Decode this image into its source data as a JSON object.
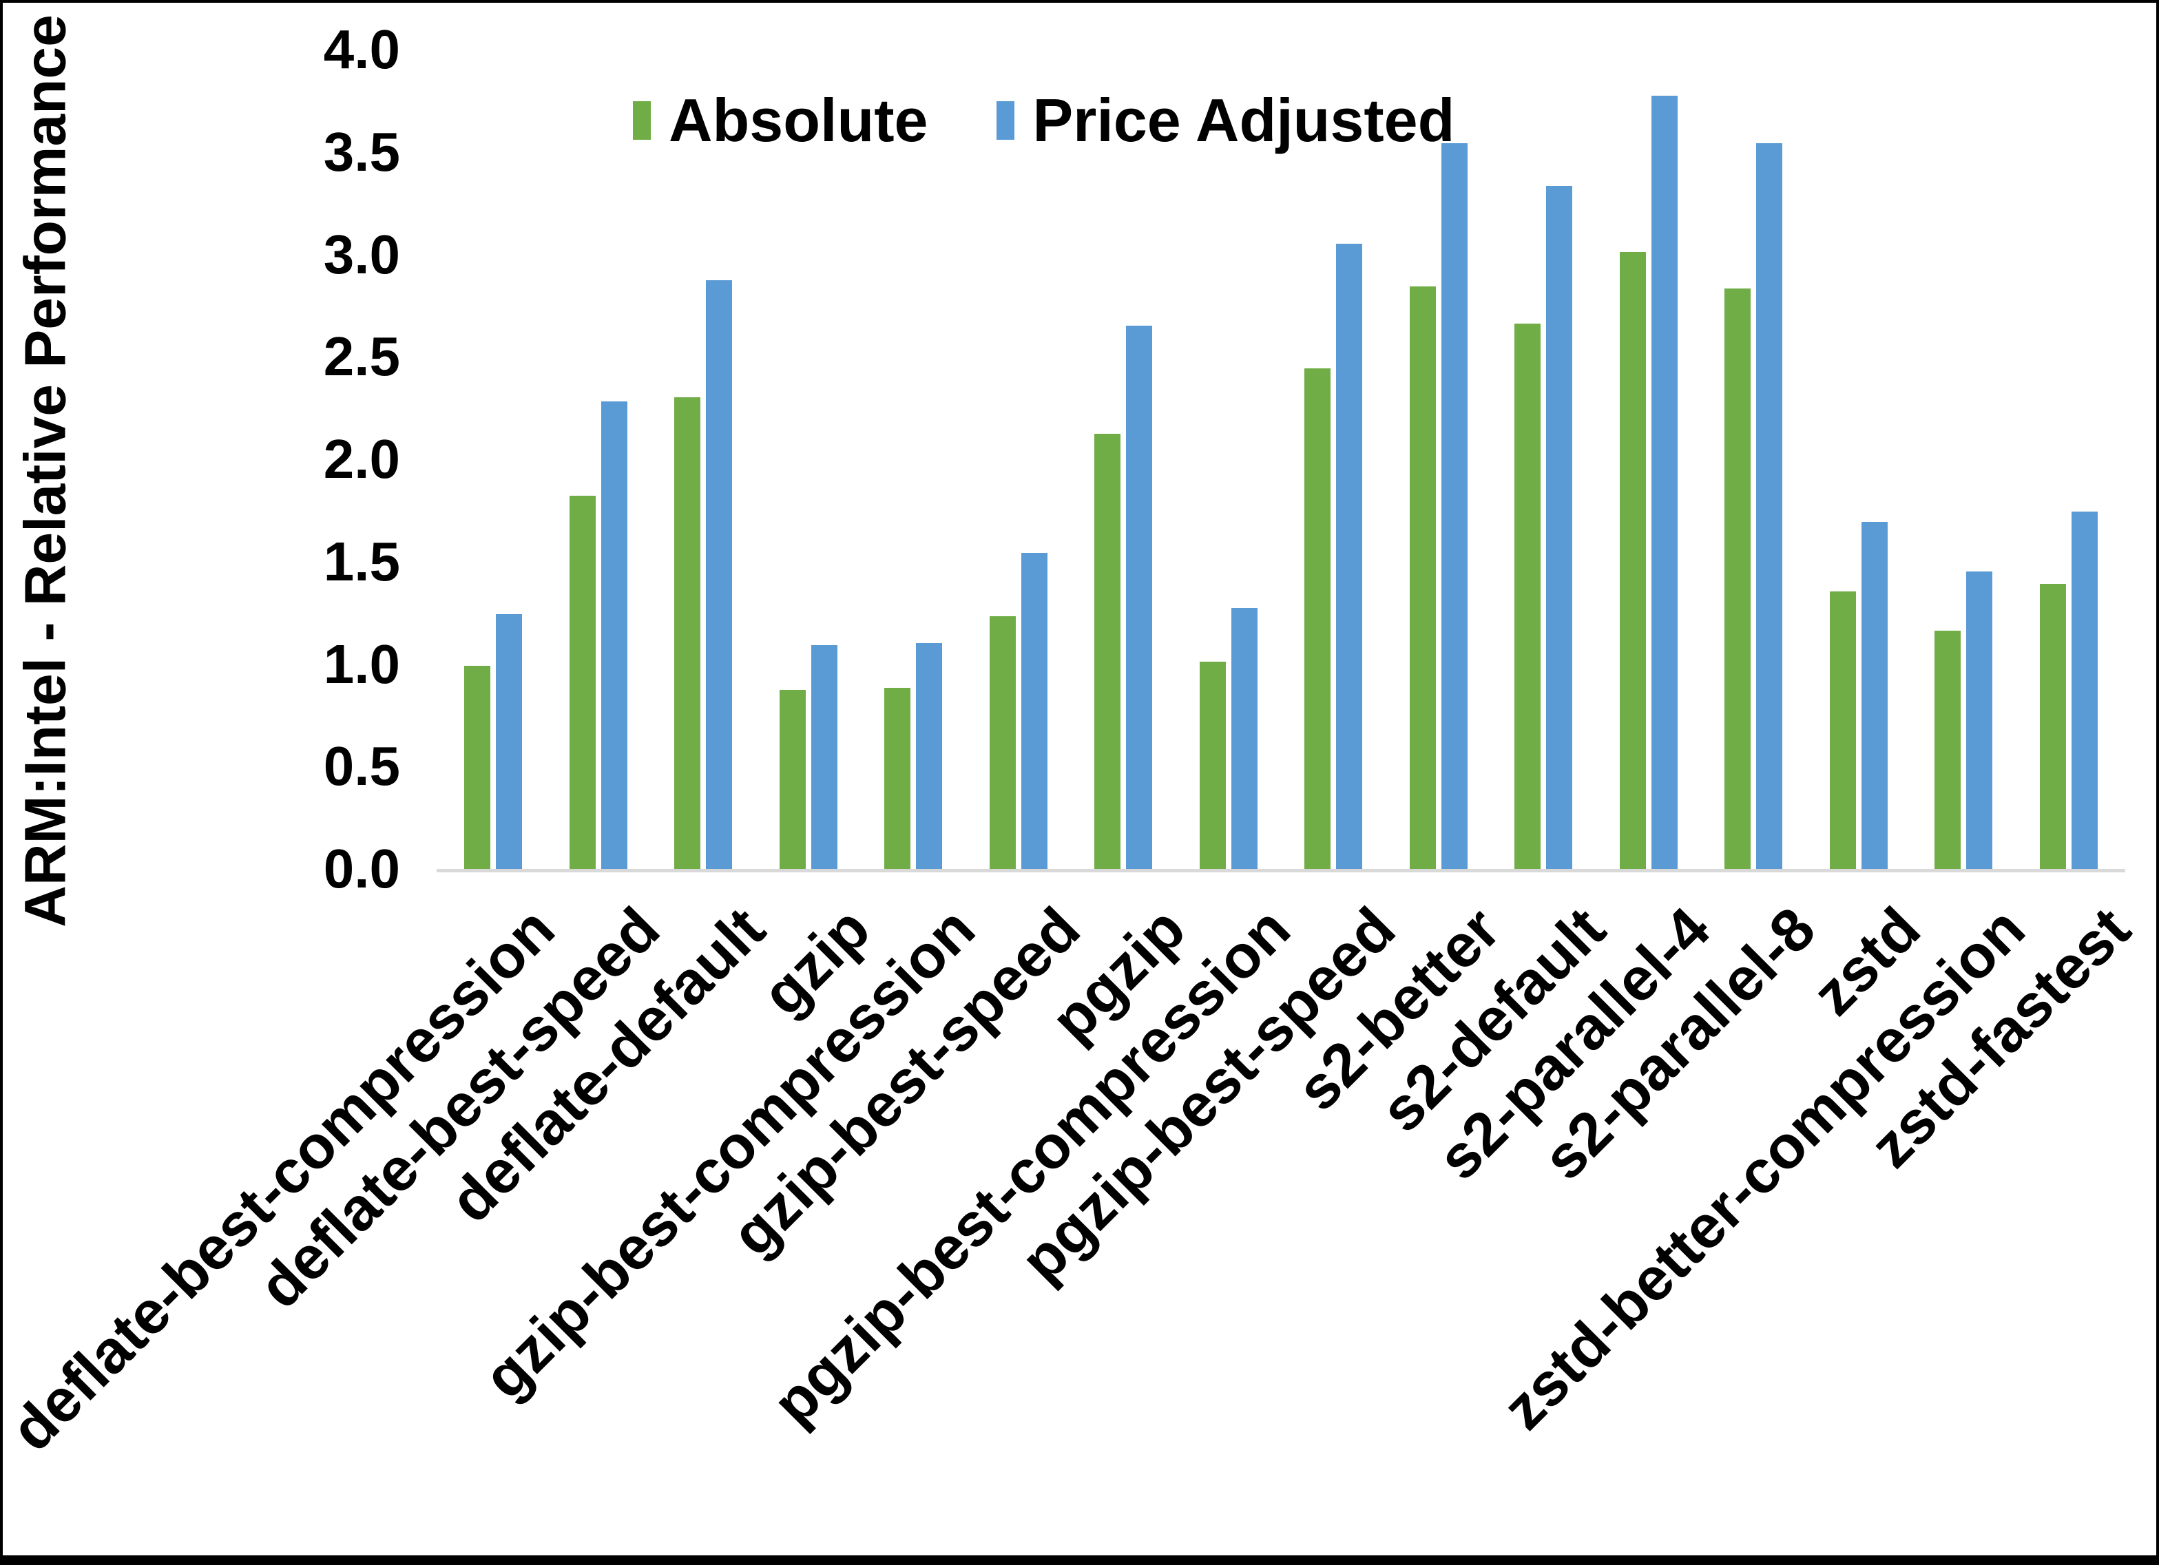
{
  "figure": {
    "background": "#ffffff",
    "frame_color": "#000000"
  },
  "chart_data": {
    "type": "bar",
    "title": "",
    "xlabel": "",
    "ylabel": "ARM:Intel - Relative Performance",
    "ylim": [
      0.0,
      4.0
    ],
    "ytick_step": 0.5,
    "yticks": [
      "0.0",
      "0.5",
      "1.0",
      "1.5",
      "2.0",
      "2.5",
      "3.0",
      "3.5",
      "4.0"
    ],
    "grid": false,
    "legend_position": "top-center",
    "axis_line_color": "#d9d9d9",
    "categories": [
      "deflate-best-compression",
      "deflate-best-speed",
      "deflate-default",
      "gzip",
      "gzip-best-compression",
      "gzip-best-speed",
      "pgzip",
      "pgzip-best-compression",
      "pgzip-best-speed",
      "s2-better",
      "s2-default",
      "s2-parallel-4",
      "s2-parallel-8",
      "zstd",
      "zstd-better-compression",
      "zstd-fastest"
    ],
    "series": [
      {
        "name": "Absolute",
        "color": "#70AD47",
        "values": [
          1.0,
          1.83,
          2.31,
          0.88,
          0.89,
          1.24,
          2.13,
          1.02,
          2.45,
          2.85,
          2.67,
          3.02,
          2.84,
          1.36,
          1.17,
          1.4
        ]
      },
      {
        "name": "Price Adjusted",
        "color": "#5B9BD5",
        "values": [
          1.25,
          2.29,
          2.88,
          1.1,
          1.11,
          1.55,
          2.66,
          1.28,
          3.06,
          3.55,
          3.34,
          3.78,
          3.55,
          1.7,
          1.46,
          1.75
        ]
      }
    ]
  }
}
